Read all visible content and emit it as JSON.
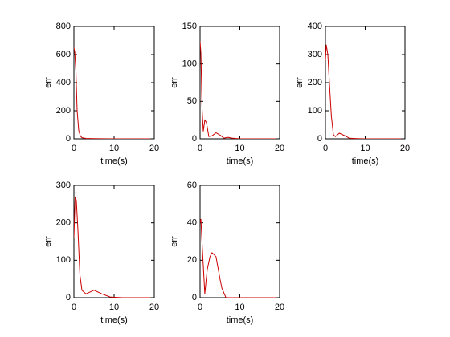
{
  "chart_data": [
    {
      "type": "line",
      "xlabel": "time(s)",
      "ylabel": "err",
      "color": "#cc0000",
      "x": [
        0,
        0.2,
        0.5,
        0.8,
        1.2,
        1.6,
        2,
        3,
        5,
        10,
        19
      ],
      "values": [
        650,
        620,
        480,
        200,
        60,
        20,
        8,
        3,
        1,
        0,
        0
      ],
      "xlim": [
        0,
        20
      ],
      "xticks": [
        0,
        10,
        20
      ],
      "ylim": [
        0,
        800
      ],
      "yticks": [
        0,
        200,
        400,
        600,
        800
      ]
    },
    {
      "type": "line",
      "xlabel": "time(s)",
      "ylabel": "err",
      "color": "#cc0000",
      "x": [
        0,
        0.2,
        0.5,
        0.8,
        1.2,
        1.6,
        2.2,
        3,
        4,
        5,
        6,
        7,
        8,
        10,
        19
      ],
      "values": [
        130,
        115,
        40,
        10,
        25,
        22,
        3,
        4,
        8,
        5,
        1,
        2,
        1,
        0,
        0
      ],
      "xlim": [
        0,
        20
      ],
      "xticks": [
        0,
        10,
        20
      ],
      "ylim": [
        0,
        150
      ],
      "yticks": [
        0,
        50,
        100,
        150
      ]
    },
    {
      "type": "line",
      "xlabel": "time(s)",
      "ylabel": "err",
      "color": "#cc0000",
      "x": [
        0,
        0.2,
        0.6,
        1,
        1.5,
        2,
        2.5,
        3.5,
        5,
        6,
        8,
        10,
        19
      ],
      "values": [
        280,
        335,
        300,
        200,
        80,
        15,
        8,
        20,
        10,
        2,
        1,
        0,
        0
      ],
      "xlim": [
        0,
        20
      ],
      "xticks": [
        0,
        10,
        20
      ],
      "ylim": [
        0,
        400
      ],
      "yticks": [
        0,
        100,
        200,
        300,
        400
      ]
    },
    {
      "type": "line",
      "xlabel": "time(s)",
      "ylabel": "err",
      "color": "#cc0000",
      "x": [
        0,
        0.3,
        0.6,
        1,
        1.5,
        2,
        3,
        5,
        7,
        9,
        12,
        19
      ],
      "values": [
        160,
        270,
        260,
        180,
        60,
        20,
        10,
        20,
        10,
        2,
        0,
        0
      ],
      "xlim": [
        0,
        20
      ],
      "xticks": [
        0,
        10,
        20
      ],
      "ylim": [
        0,
        300
      ],
      "yticks": [
        0,
        100,
        200,
        300
      ]
    },
    {
      "type": "line",
      "xlabel": "time(s)",
      "ylabel": "err",
      "color": "#cc0000",
      "x": [
        0,
        0.2,
        0.6,
        1,
        1.2,
        1.8,
        2.5,
        3,
        4,
        5,
        5.5,
        6.5,
        8,
        19
      ],
      "values": [
        40,
        42,
        25,
        10,
        2,
        15,
        22,
        24,
        22,
        10,
        5,
        0,
        0,
        0
      ],
      "xlim": [
        0,
        20
      ],
      "xticks": [
        0,
        10,
        20
      ],
      "ylim": [
        0,
        60
      ],
      "yticks": [
        0,
        20,
        40,
        60
      ]
    }
  ]
}
